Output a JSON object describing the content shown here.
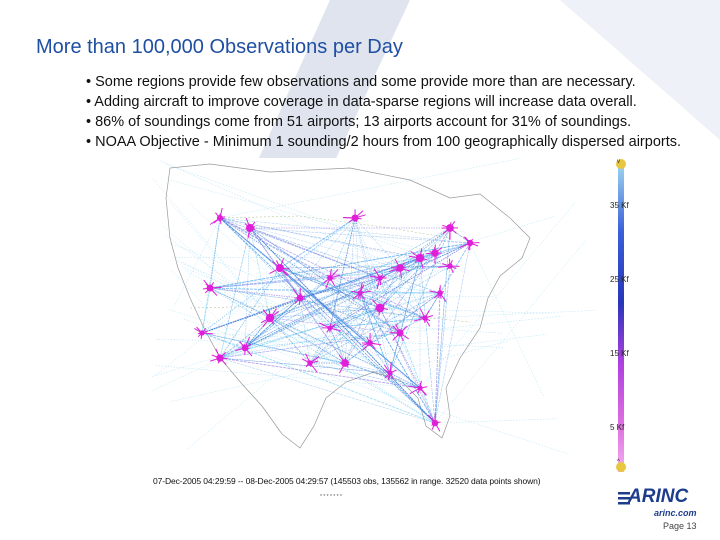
{
  "slide": {
    "title": "More than 100,000 Observations per Day",
    "bullets": [
      "• Some regions provide few observations and some provide more than are necessary.",
      "• Adding aircraft to improve coverage in data-sparse regions will increase data overall.",
      "• 86% of soundings come from 51 airports; 13 airports account for 31% of soundings.",
      "• NOAA Objective - Minimum 1 sounding/2 hours from 100 geographically dispersed airports."
    ],
    "page_label": "Page 13"
  },
  "map": {
    "caption": "07-Dec-2005 04:29:59 -- 08-Dec-2005 04:29:57 (145503 obs, 135562 in range. 32520 data points shown)",
    "footnote": "* * * * * * *",
    "altitude_labels": [
      "35 Kf",
      "25 Kf",
      "15 Kf",
      "5 Kf"
    ],
    "altitude_legend_top": "v",
    "altitude_legend_bottom": "^"
  },
  "logo": {
    "wordmark": "ARINC",
    "url": "arinc.com"
  },
  "colors": {
    "title": "#1f4fa3",
    "swoosh": "#dfe4ef",
    "track_blue": "#3b8fe0",
    "track_cyan": "#5fc8f0",
    "airport_magenta": "#e020d8",
    "logo_blue": "#1e3c8c"
  }
}
